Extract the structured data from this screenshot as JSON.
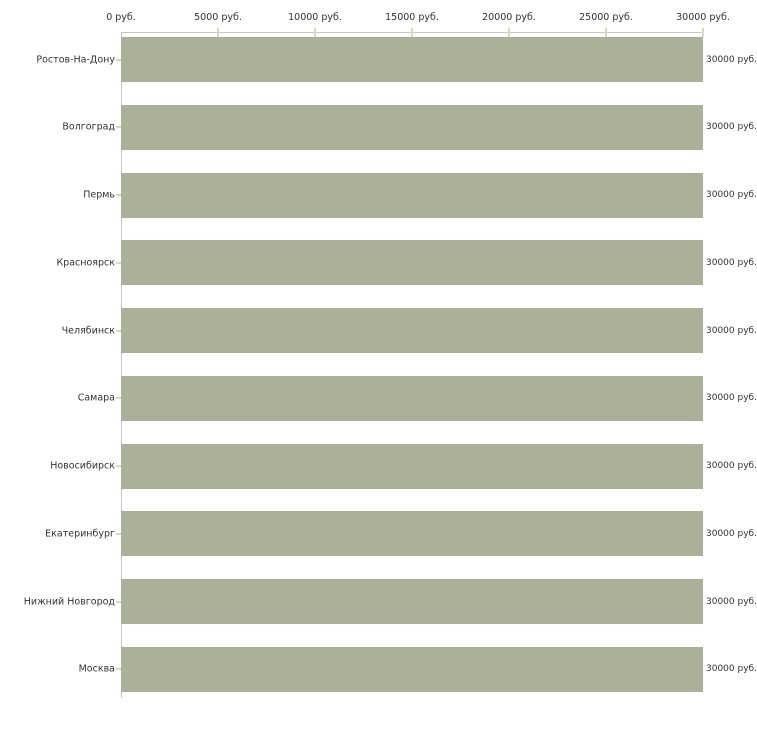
{
  "chart_data": {
    "type": "bar",
    "orientation": "horizontal",
    "title": "",
    "xlabel": "",
    "ylabel": "",
    "categories": [
      "Ростов-На-Дону",
      "Волгоград",
      "Пермь",
      "Красноярск",
      "Челябинск",
      "Самара",
      "Новосибирск",
      "Екатеринбург",
      "Нижний Новгород",
      "Москва"
    ],
    "values": [
      30000,
      30000,
      30000,
      30000,
      30000,
      30000,
      30000,
      30000,
      30000,
      30000
    ],
    "bar_value_labels": [
      "30000 руб.",
      "30000 руб.",
      "30000 руб.",
      "30000 руб.",
      "30000 руб.",
      "30000 руб.",
      "30000 руб.",
      "30000 руб.",
      "30000 руб.",
      "30000 руб."
    ],
    "xlim": [
      0,
      30000
    ],
    "x_tick_values": [
      0,
      5000,
      10000,
      15000,
      20000,
      25000,
      30000
    ],
    "x_tick_labels": [
      "0 руб.",
      "5000 руб.",
      "10000 руб.",
      "15000 руб.",
      "20000 руб.",
      "25000 руб.",
      "30000 руб."
    ],
    "grid": false,
    "legend": false,
    "colors": {
      "bar": "#ABB199",
      "axis_line": "#C8C8C8",
      "tick_mark": "#DBD8C1",
      "text": "#333333",
      "background": "#FFFFFF"
    }
  }
}
